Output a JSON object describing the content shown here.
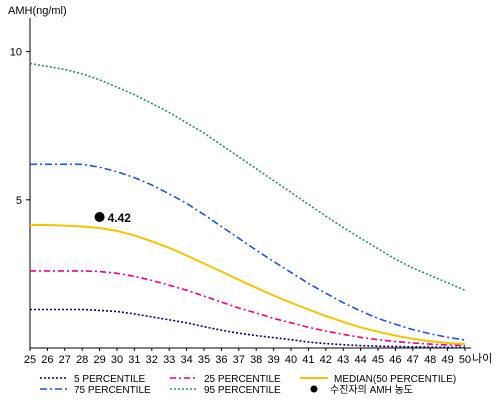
{
  "chart_data": {
    "type": "line",
    "title": "",
    "ylabel": "AMH(ng/ml)",
    "xlabel": "나이",
    "x": [
      25,
      26,
      27,
      28,
      29,
      30,
      31,
      32,
      33,
      34,
      35,
      36,
      37,
      38,
      39,
      40,
      41,
      42,
      43,
      44,
      45,
      46,
      47,
      48,
      49,
      50
    ],
    "xlim": [
      25,
      50
    ],
    "ylim": [
      0,
      11
    ],
    "yticks": [
      5,
      10
    ],
    "series": [
      {
        "name": "5 PERCENTILE",
        "color": "#000066",
        "dash": "2,2",
        "values": [
          1.3,
          1.3,
          1.3,
          1.3,
          1.27,
          1.23,
          1.15,
          1.05,
          0.95,
          0.85,
          0.72,
          0.6,
          0.5,
          0.42,
          0.35,
          0.28,
          0.2,
          0.15,
          0.11,
          0.08,
          0.06,
          0.05,
          0.04,
          0.03,
          0.02,
          0.02
        ]
      },
      {
        "name": "25 PERCENTILE",
        "color": "#e6008a",
        "dash": "6,3,2,3",
        "values": [
          2.6,
          2.6,
          2.6,
          2.6,
          2.58,
          2.52,
          2.42,
          2.28,
          2.12,
          1.95,
          1.75,
          1.55,
          1.35,
          1.18,
          1.0,
          0.85,
          0.7,
          0.57,
          0.46,
          0.36,
          0.28,
          0.22,
          0.17,
          0.13,
          0.1,
          0.08
        ]
      },
      {
        "name": "MEDIAN(50 PERCENTILE)",
        "color": "#f2c500",
        "dash": "",
        "values": [
          4.15,
          4.15,
          4.13,
          4.1,
          4.05,
          3.95,
          3.8,
          3.6,
          3.38,
          3.12,
          2.85,
          2.58,
          2.3,
          2.03,
          1.77,
          1.53,
          1.3,
          1.08,
          0.88,
          0.7,
          0.55,
          0.42,
          0.31,
          0.23,
          0.17,
          0.13
        ]
      },
      {
        "name": "75 PERCENTILE",
        "color": "#2255cc",
        "dash": "7,3,2,3",
        "values": [
          6.2,
          6.2,
          6.2,
          6.2,
          6.1,
          5.95,
          5.75,
          5.5,
          5.2,
          4.88,
          4.5,
          4.1,
          3.7,
          3.3,
          2.92,
          2.55,
          2.18,
          1.85,
          1.53,
          1.25,
          1.0,
          0.8,
          0.62,
          0.48,
          0.36,
          0.27
        ]
      },
      {
        "name": "95 PERCENTILE",
        "color": "#2e8b57",
        "dash": "2,2",
        "values": [
          9.6,
          9.5,
          9.4,
          9.25,
          9.05,
          8.8,
          8.55,
          8.25,
          7.95,
          7.6,
          7.25,
          6.85,
          6.45,
          6.05,
          5.65,
          5.25,
          4.85,
          4.45,
          4.07,
          3.7,
          3.35,
          3.0,
          2.7,
          2.45,
          2.2,
          1.95
        ]
      }
    ],
    "marker": {
      "label": "수진자의 AMH 농도",
      "x": 29,
      "y": 4.42,
      "text": "4.42",
      "color": "#000000"
    },
    "legend_position": "bottom",
    "grid": false
  }
}
